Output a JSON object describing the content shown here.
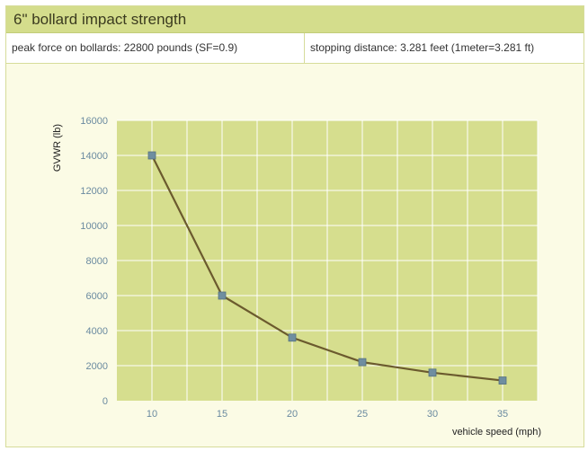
{
  "header": {
    "title": "6\" bollard impact strength"
  },
  "params": {
    "peak_force": "peak force on bollards: 22800 pounds (SF=0.9)",
    "stopping_distance": "stopping distance: 3.281 feet (1meter=3.281 ft)"
  },
  "colors": {
    "plot_bg": "#d6de8e",
    "grid": "#ffffff",
    "line": "#6b5a2e",
    "marker": "#6f8ea0",
    "tick_label": "#6a8aa0"
  },
  "chart_data": {
    "type": "line",
    "title": "",
    "xlabel": "vehicle speed (mph)",
    "ylabel": "GVWR (lb)",
    "x": [
      10,
      15,
      20,
      25,
      30,
      35
    ],
    "series": [
      {
        "values": [
          14000,
          6000,
          3600,
          2200,
          1600,
          1150
        ]
      }
    ],
    "x_ticks": [
      "10",
      "15",
      "20",
      "25",
      "30",
      "35"
    ],
    "y_ticks": [
      "0",
      "2000",
      "4000",
      "6000",
      "8000",
      "10000",
      "12000",
      "14000",
      "16000"
    ],
    "xlim": [
      7.5,
      37.5
    ],
    "ylim": [
      0,
      16000
    ],
    "grid": true,
    "legend": "none"
  }
}
